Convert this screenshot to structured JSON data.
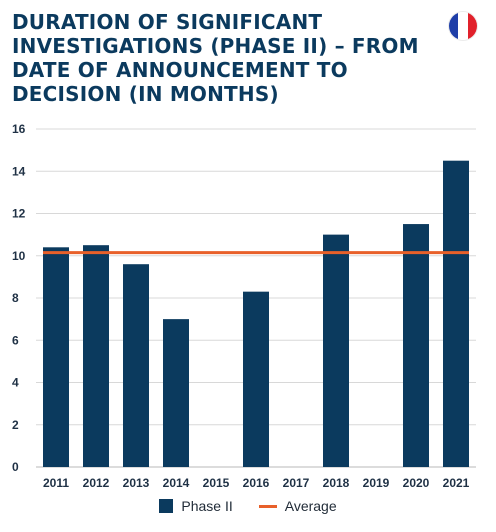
{
  "header": {
    "title": "DURATION OF SIGNIFICANT INVESTIGATIONS (PHASE II) – FROM DATE OF ANNOUNCEMENT TO DECISION (IN MONTHS)"
  },
  "flag": {
    "icon": "france-flag-icon",
    "colors": [
      "#1e3ea8",
      "#ffffff",
      "#e1212b"
    ]
  },
  "colors": {
    "bar": "#0b3a5e",
    "average": "#e8602a",
    "grid": "#d8d8d8",
    "text": "#1f3145"
  },
  "chart_data": {
    "type": "bar",
    "categories": [
      "2011",
      "2012",
      "2013",
      "2014",
      "2015",
      "2016",
      "2017",
      "2018",
      "2019",
      "2020",
      "2021"
    ],
    "series": [
      {
        "name": "Phase II",
        "type": "bar",
        "values": [
          10.4,
          10.5,
          9.6,
          7.0,
          null,
          8.3,
          null,
          11.0,
          null,
          11.5,
          14.5
        ]
      },
      {
        "name": "Average",
        "type": "line",
        "value": 10.15
      }
    ],
    "ylim": [
      0,
      16
    ],
    "yticks": [
      0,
      2,
      4,
      6,
      8,
      10,
      12,
      14,
      16
    ],
    "grid": true,
    "legend": "bottom"
  },
  "legend": {
    "bar_label": "Phase II",
    "line_label": "Average"
  }
}
